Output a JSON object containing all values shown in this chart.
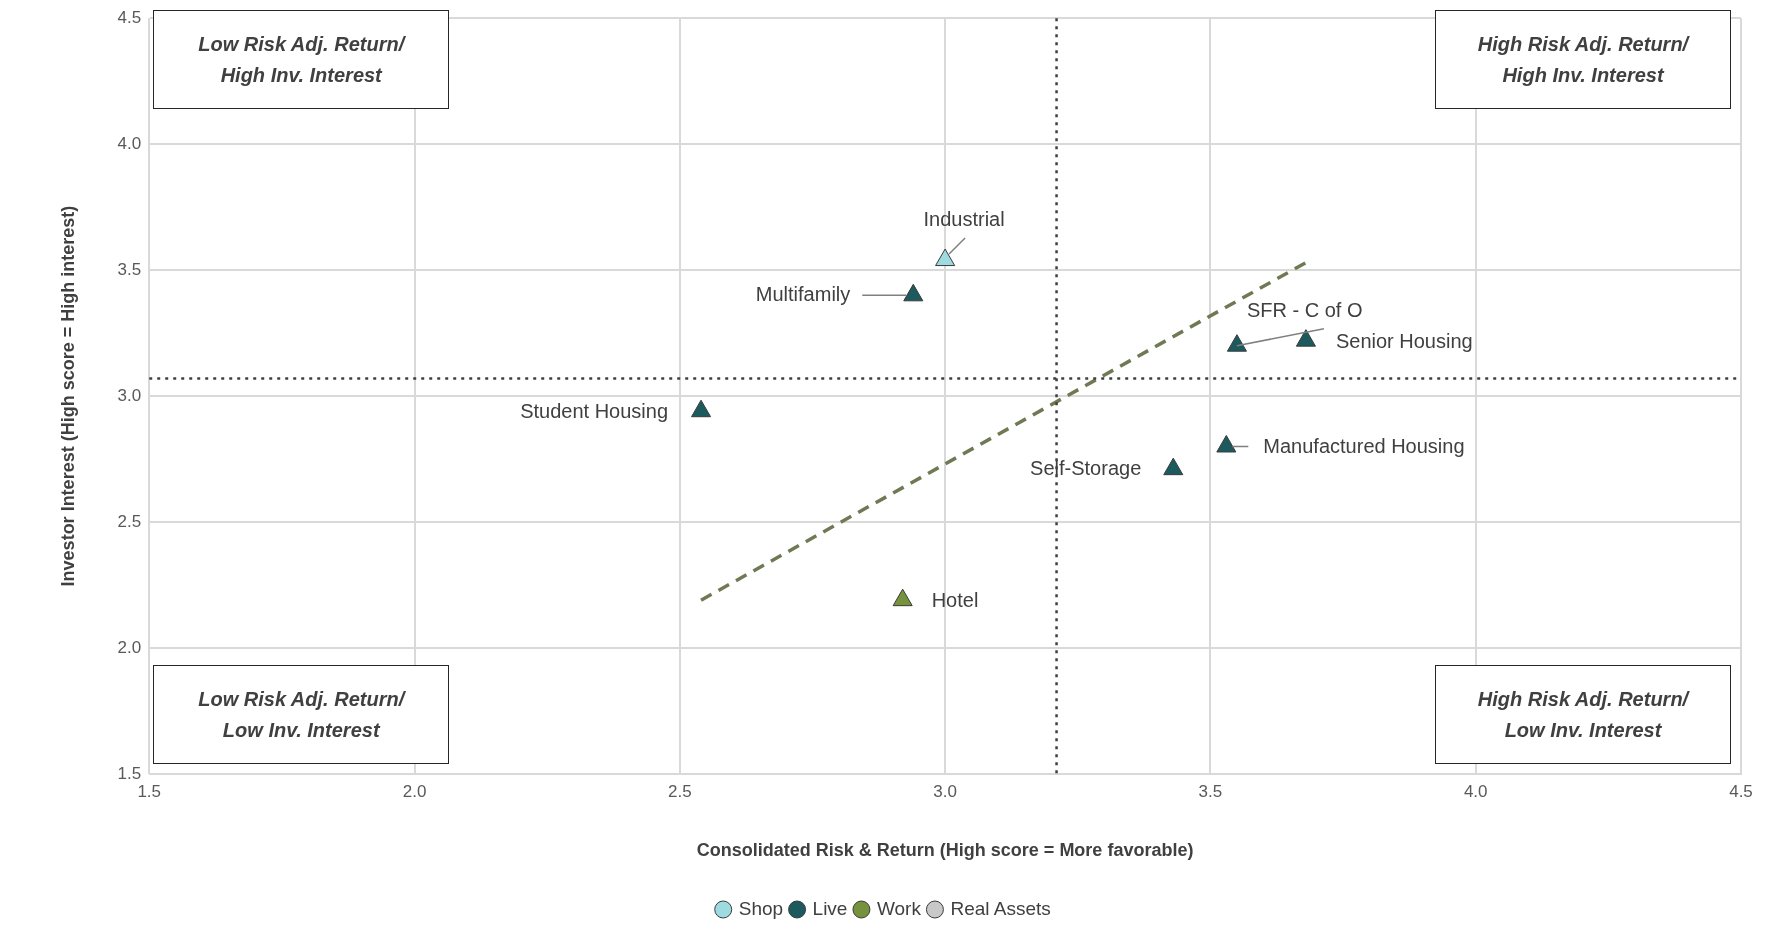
{
  "chart_data": {
    "type": "scatter",
    "xlabel": "Consolidated Risk & Return (High score = More favorable)",
    "ylabel": "Investor Interest (High score = High interest)",
    "xlim": [
      1.5,
      4.5
    ],
    "ylim": [
      1.5,
      4.5
    ],
    "xticks": [
      {
        "value": 1.5,
        "label": "1.5"
      },
      {
        "value": 2,
        "label": "2.0"
      },
      {
        "value": 2.5,
        "label": "2.5"
      },
      {
        "value": 3,
        "label": "3.0"
      },
      {
        "value": 3.5,
        "label": "3.5"
      },
      {
        "value": 4,
        "label": "4.0"
      },
      {
        "value": 4.5,
        "label": "4.5"
      }
    ],
    "yticks": [
      {
        "value": 1.5,
        "label": "1.5"
      },
      {
        "value": 2,
        "label": "2.0"
      },
      {
        "value": 2.5,
        "label": "2.5"
      },
      {
        "value": 3,
        "label": "3.0"
      },
      {
        "value": 3.5,
        "label": "3.5"
      },
      {
        "value": 4,
        "label": "4.0"
      },
      {
        "value": 4.5,
        "label": "4.5"
      }
    ],
    "grid": true,
    "legend": "bottom",
    "marker": "triangle",
    "series": [
      {
        "name": "Shop",
        "color": "#9edbe0",
        "x": [
          3.0
        ],
        "values": [
          3.54
        ]
      },
      {
        "name": "Live",
        "color": "#1d5a5e",
        "x": [
          2.94,
          3.55,
          3.68,
          2.54,
          3.53,
          3.43
        ],
        "values": [
          3.4,
          3.2,
          3.22,
          2.94,
          2.8,
          2.71
        ]
      },
      {
        "name": "Work",
        "color": "#76923c",
        "x": [
          2.92
        ],
        "values": [
          2.19
        ]
      },
      {
        "name": "Real Assets",
        "color": "#c8c8c8"
      },
      {
        "type": "line",
        "color": "#6f7a55",
        "line_style": "dashed",
        "marker": "none",
        "x": [
          2.54,
          3.68
        ],
        "values": [
          2.19,
          3.53
        ]
      }
    ],
    "ref_lines": [
      {
        "axis": "x",
        "value": 3.21,
        "line_style": "dotted",
        "color": "#404040"
      },
      {
        "axis": "y",
        "value": 3.07,
        "line_style": "dotted",
        "color": "#404040"
      }
    ],
    "annotations": [
      {
        "text": "Industrial",
        "x": 3.0,
        "y": 3.54
      },
      {
        "text": "Multifamily",
        "x": 2.94,
        "y": 3.4
      },
      {
        "text": "SFR - C of O",
        "x": 3.55,
        "y": 3.2
      },
      {
        "text": "Senior Housing",
        "x": 3.68,
        "y": 3.22
      },
      {
        "text": "Student Housing",
        "x": 2.54,
        "y": 2.94
      },
      {
        "text": "Manufactured Housing",
        "x": 3.53,
        "y": 2.8
      },
      {
        "text": "Self-Storage",
        "x": 3.43,
        "y": 2.71
      },
      {
        "text": "Hotel",
        "x": 2.92,
        "y": 2.19
      },
      "Low Risk Adj. Return/\nHigh Inv. Interest",
      "High Risk Adj. Return/\nHigh Inv. Interest",
      "Low Risk Adj. Return/\nLow Inv. Interest",
      "High Risk Adj. Return/\nLow Inv. Interest"
    ]
  }
}
